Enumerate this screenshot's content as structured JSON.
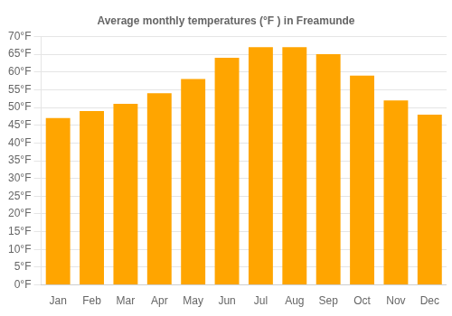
{
  "chart_data": {
    "type": "bar",
    "title": "Average monthly temperatures (°F ) in Freamunde",
    "categories": [
      "Jan",
      "Feb",
      "Mar",
      "Apr",
      "May",
      "Jun",
      "Jul",
      "Aug",
      "Sep",
      "Oct",
      "Nov",
      "Dec"
    ],
    "values": [
      47,
      49,
      51,
      54,
      58,
      64,
      67,
      67,
      65,
      59,
      52,
      48
    ],
    "color": "#FFA500",
    "ylim": [
      0,
      70
    ],
    "yticks": [
      {
        "value": 0,
        "label": "0°F"
      },
      {
        "value": 5,
        "label": "5°F"
      },
      {
        "value": 10,
        "label": "10°F"
      },
      {
        "value": 15,
        "label": "15°F"
      },
      {
        "value": 20,
        "label": "20°F"
      },
      {
        "value": 25,
        "label": "25°F"
      },
      {
        "value": 30,
        "label": "30°F"
      },
      {
        "value": 35,
        "label": "35°F"
      },
      {
        "value": 40,
        "label": "40°F"
      },
      {
        "value": 45,
        "label": "45°F"
      },
      {
        "value": 50,
        "label": "50°F"
      },
      {
        "value": 55,
        "label": "55°F"
      },
      {
        "value": 60,
        "label": "60°F"
      },
      {
        "value": 65,
        "label": "65°F"
      },
      {
        "value": 70,
        "label": "70°F"
      }
    ],
    "grid": true
  }
}
